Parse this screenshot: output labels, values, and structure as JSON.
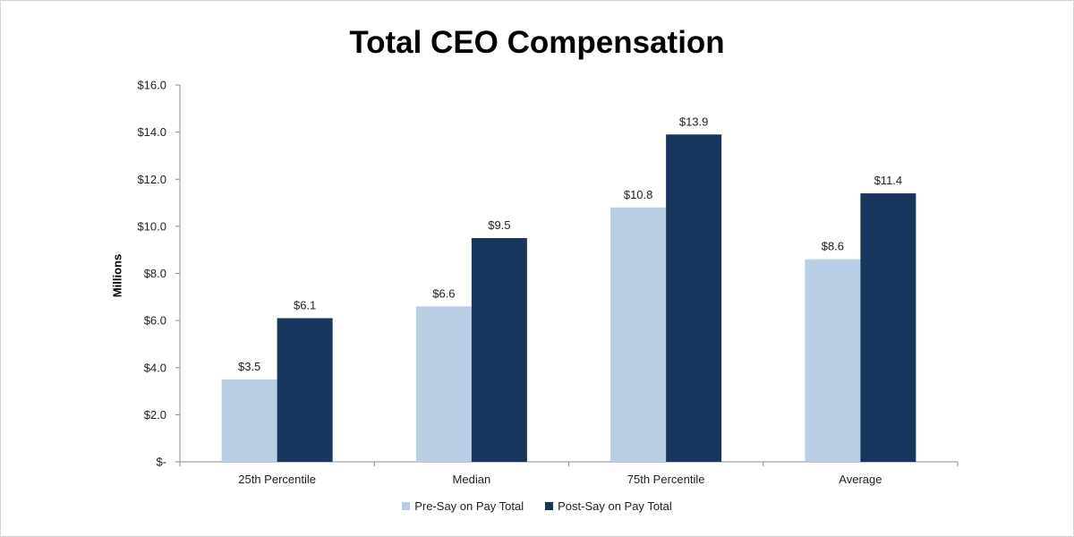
{
  "chart_data": {
    "type": "bar",
    "title": "Total CEO Compensation",
    "ylabel": "Millions",
    "xlabel": "",
    "categories": [
      "25th Percentile",
      "Median",
      "75th Percentile",
      "Average"
    ],
    "series": [
      {
        "name": "Pre-Say on Pay Total",
        "color": "#b9cde5",
        "values": [
          3.5,
          6.6,
          10.8,
          8.6
        ],
        "labels": [
          "$3.5",
          "$6.6",
          "$10.8",
          "$8.6"
        ]
      },
      {
        "name": "Post-Say on Pay Total",
        "color": "#17365d",
        "values": [
          6.1,
          9.5,
          13.9,
          11.4
        ],
        "labels": [
          "$6.1",
          "$9.5",
          "$13.9",
          "$11.4"
        ]
      }
    ],
    "ylim": [
      0,
      16
    ],
    "yticks": [
      0,
      2,
      4,
      6,
      8,
      10,
      12,
      14,
      16
    ],
    "ytick_labels": [
      "$-",
      "$2.0",
      "$4.0",
      "$6.0",
      "$8.0",
      "$10.0",
      "$12.0",
      "$14.0",
      "$16.0"
    ],
    "grid": false,
    "legend_position": "bottom"
  }
}
